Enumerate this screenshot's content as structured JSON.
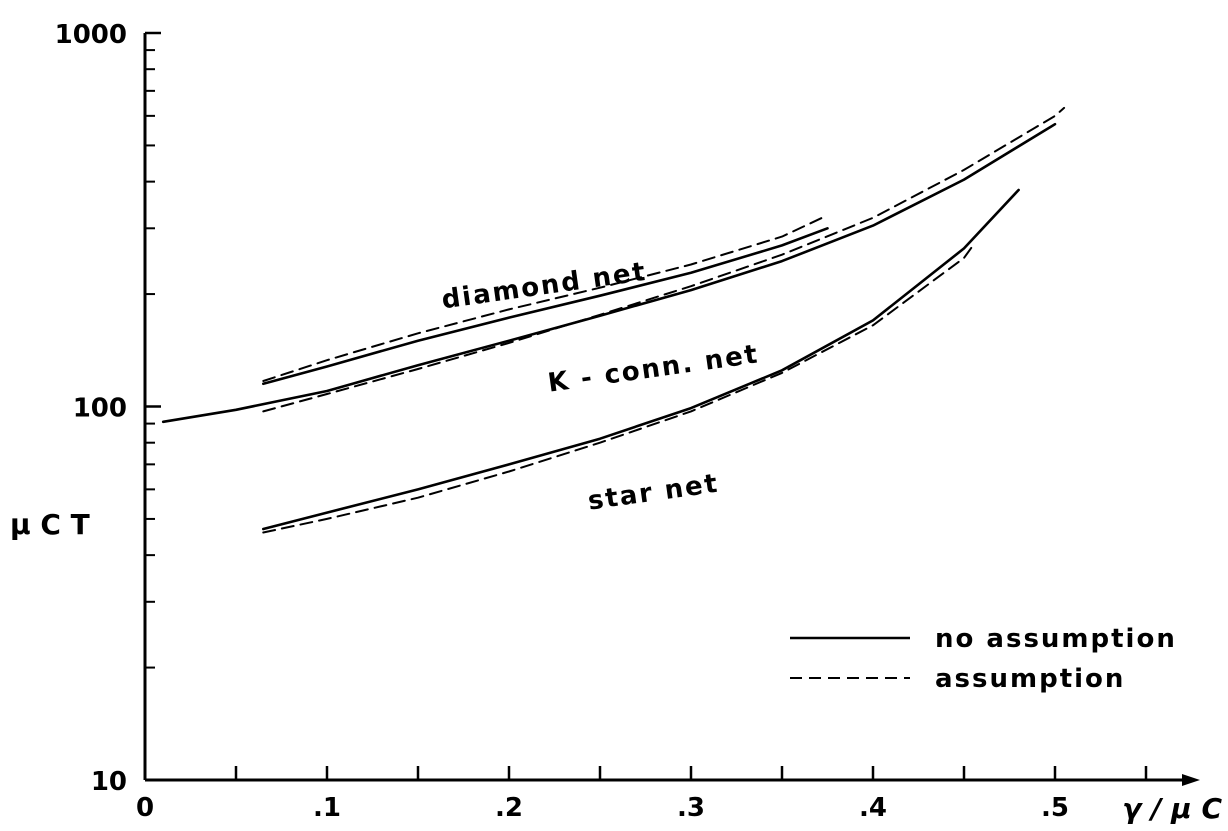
{
  "chart_data": {
    "type": "line",
    "title": "",
    "xlabel": "γ / μ C",
    "ylabel": "μ C T",
    "x_scale": "linear",
    "y_scale": "log",
    "xlim": [
      0,
      0.55
    ],
    "ylim": [
      10,
      1000
    ],
    "grid": false,
    "x_ticks": [
      0,
      0.1,
      0.2,
      0.3,
      0.4,
      0.5
    ],
    "x_tick_labels": [
      "0",
      ".1",
      ".2",
      ".3",
      ".4",
      ".5"
    ],
    "y_ticks": [
      10,
      100,
      1000
    ],
    "y_tick_labels": [
      "10",
      "100",
      "1000"
    ],
    "legend": {
      "position": "bottom-right",
      "entries": [
        {
          "label": "no assumption",
          "style": "solid"
        },
        {
          "label": "assumption",
          "style": "dashed"
        }
      ]
    },
    "curve_labels": [
      {
        "text": "diamond net",
        "x": 0.22,
        "y": 200
      },
      {
        "text": "K - conn. net",
        "x": 0.28,
        "y": 120
      },
      {
        "text": "star net",
        "x": 0.28,
        "y": 56
      }
    ],
    "series": [
      {
        "curve": "diamond net",
        "style": "solid",
        "x": [
          0.065,
          0.1,
          0.15,
          0.2,
          0.25,
          0.3,
          0.35,
          0.375
        ],
        "y": [
          115,
          128,
          150,
          173,
          198,
          228,
          270,
          300
        ]
      },
      {
        "curve": "diamond net",
        "style": "dashed",
        "x": [
          0.065,
          0.1,
          0.15,
          0.2,
          0.25,
          0.3,
          0.35,
          0.375
        ],
        "y": [
          117,
          133,
          157,
          182,
          208,
          240,
          285,
          325
        ]
      },
      {
        "curve": "K-conn. net",
        "style": "solid",
        "x": [
          0.01,
          0.05,
          0.1,
          0.15,
          0.2,
          0.25,
          0.3,
          0.35,
          0.4,
          0.45,
          0.5
        ],
        "y": [
          91,
          98,
          110,
          129,
          150,
          175,
          205,
          245,
          305,
          405,
          570
        ]
      },
      {
        "curve": "K-conn. net",
        "style": "dashed",
        "x": [
          0.065,
          0.1,
          0.15,
          0.2,
          0.25,
          0.3,
          0.35,
          0.4,
          0.45,
          0.5,
          0.505
        ],
        "y": [
          97,
          108,
          126,
          148,
          176,
          210,
          255,
          320,
          430,
          600,
          630
        ]
      },
      {
        "curve": "star net",
        "style": "solid",
        "x": [
          0.065,
          0.1,
          0.15,
          0.2,
          0.25,
          0.3,
          0.35,
          0.4,
          0.45,
          0.48
        ],
        "y": [
          47,
          52,
          60,
          70,
          82,
          99,
          125,
          170,
          265,
          380
        ]
      },
      {
        "curve": "star net",
        "style": "dashed",
        "x": [
          0.065,
          0.1,
          0.15,
          0.2,
          0.25,
          0.3,
          0.35,
          0.4,
          0.45,
          0.455
        ],
        "y": [
          46,
          50,
          57,
          67,
          80,
          97,
          123,
          165,
          250,
          270
        ]
      }
    ]
  }
}
